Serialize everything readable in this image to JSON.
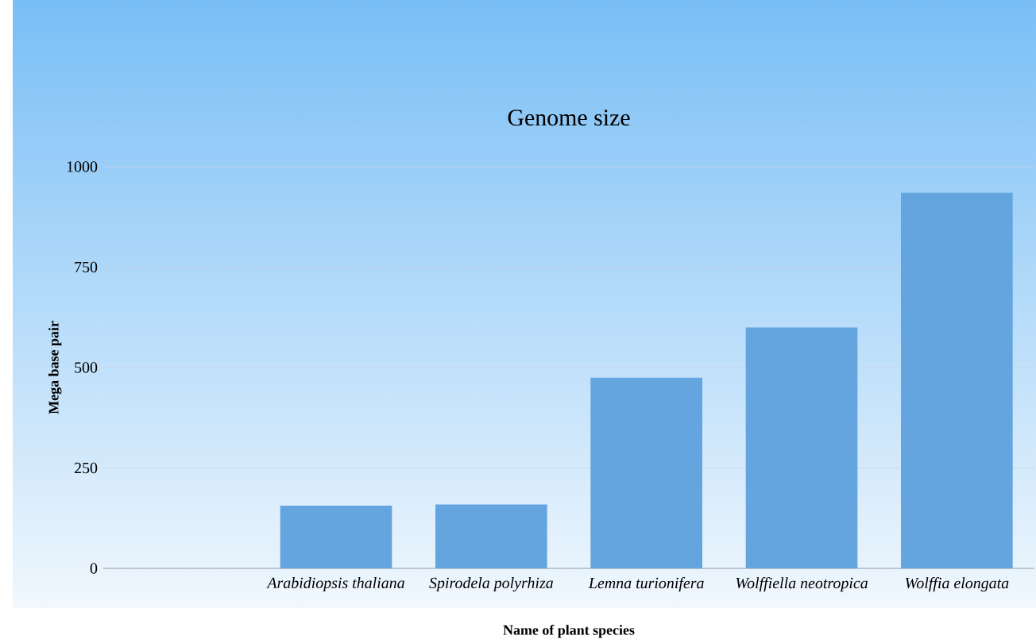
{
  "chart_data": {
    "type": "bar",
    "title": "Genome size",
    "xlabel": "Name of plant species",
    "ylabel": "Mega base pair",
    "categories": [
      null,
      "Arabidiopsis thaliana",
      "Spirodela polyrhiza",
      "Lemna turionifera",
      "Wolffiella neotropica",
      "Wolffia elongata"
    ],
    "values": [
      null,
      156,
      159,
      475,
      600,
      935
    ],
    "color": "#64a5e0",
    "ylim": [
      0,
      1000
    ],
    "yticks": [
      0,
      250,
      500,
      750,
      1000
    ],
    "grid": "y"
  }
}
